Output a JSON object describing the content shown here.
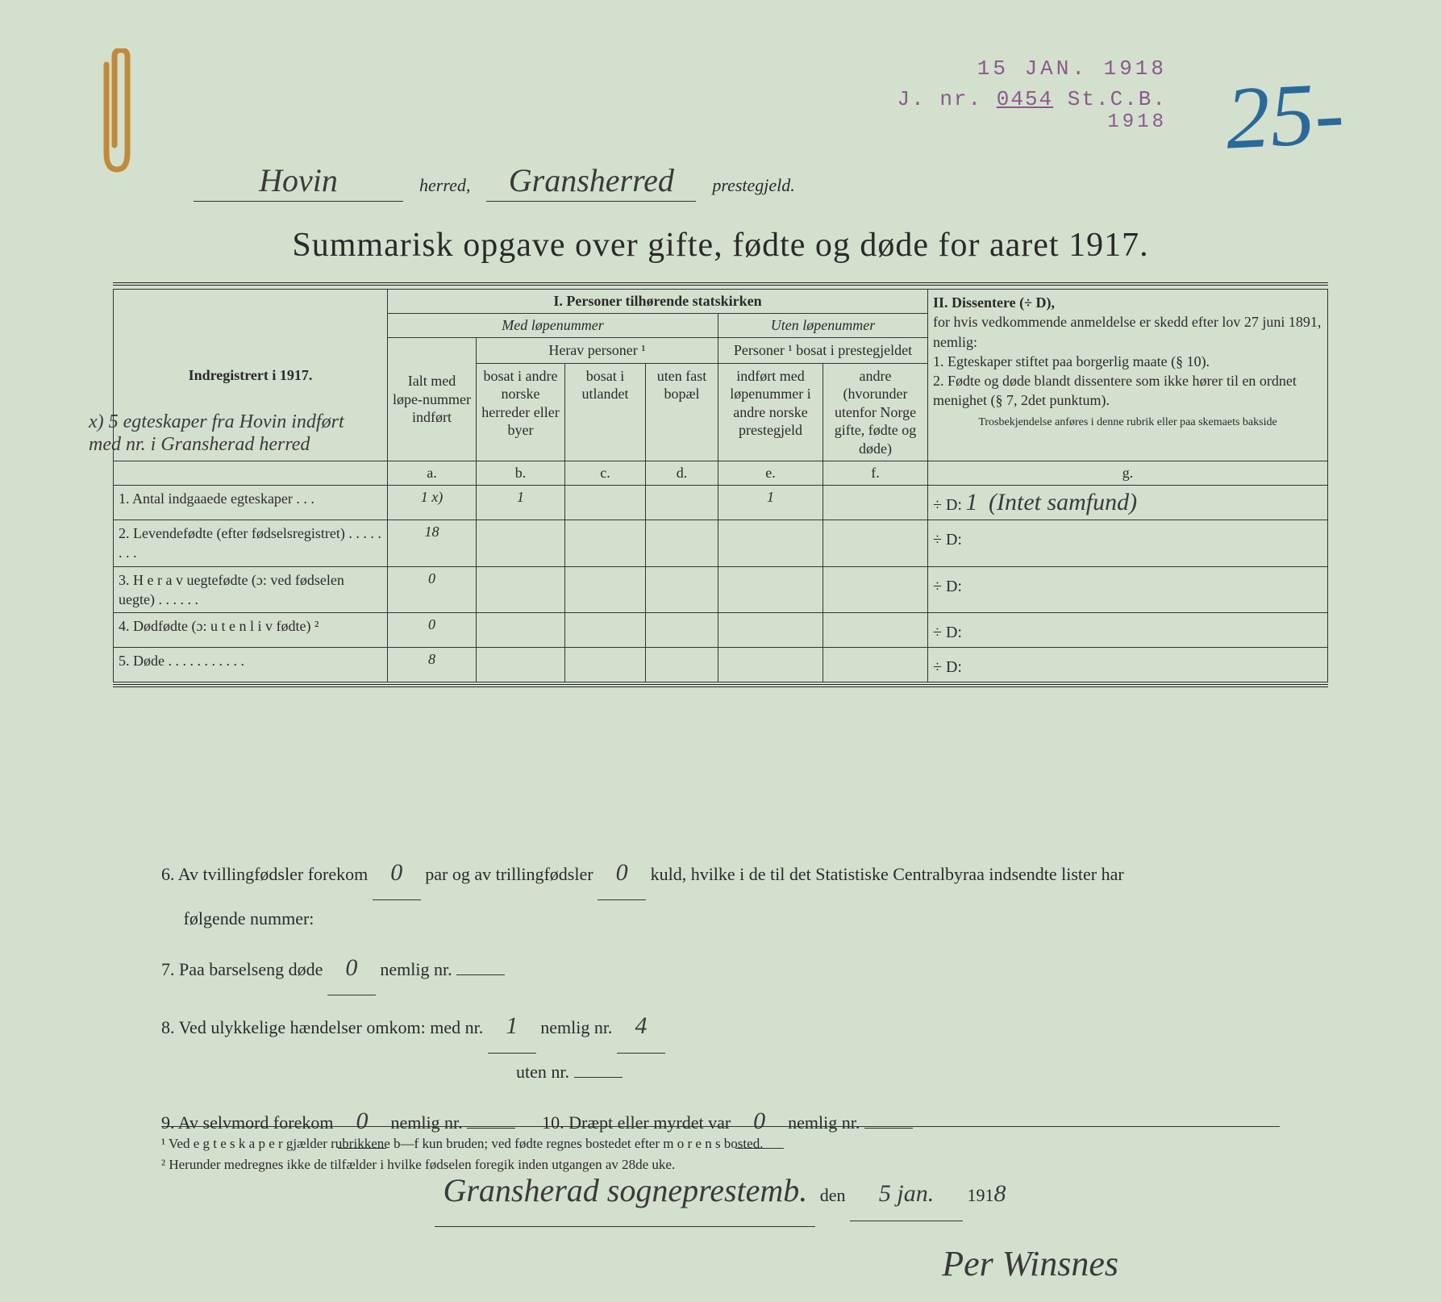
{
  "stamps": {
    "date": "15 JAN. 1918",
    "jnr_prefix": "J. nr.",
    "jnr_number": "0454",
    "jnr_suffix": "St.C.B.",
    "year": "1918"
  },
  "big_number": "25-",
  "header": {
    "herred_value": "Hovin",
    "herred_label": "herred,",
    "prestegjeld_value": "Gransherred",
    "prestegjeld_label": "prestegjeld."
  },
  "title": "Summarisk opgave over gifte, fødte og døde for aaret 1917.",
  "margin_note": "x) 5 egteskaper fra Hovin indført med nr. i Gransherad herred",
  "table": {
    "section1": "I.  Personer tilhørende statskirken",
    "section2_title": "II.  Dissentere (÷ D),",
    "section2_body": "for hvis vedkommende anmeldelse er skedd efter lov 27 juni 1891, nemlig:\n1. Egteskaper stiftet paa borgerlig maate (§ 10).\n2. Fødte og døde blandt dissentere som ikke hører til en ordnet menighet (§ 7, 2det punktum).",
    "section2_small": "Trosbekjendelse anføres i denne rubrik eller paa skemaets bakside",
    "med": "Med løpenummer",
    "uten": "Uten løpenummer",
    "indreg": "Indregistrert i 1917.",
    "ialt": "Ialt med løpe-nummer indført",
    "herav": "Herav personer ¹",
    "pers_bosat": "Personer ¹ bosat i prestegjeldet",
    "col_b": "bosat i andre norske herreder eller byer",
    "col_c": "bosat i utlandet",
    "col_d": "uten fast bopæl",
    "col_e": "indført med løpenummer i andre norske prestegjeld",
    "col_f": "andre (hvorunder utenfor Norge gifte, fødte og døde)",
    "letters": {
      "a": "a.",
      "b": "b.",
      "c": "c.",
      "d": "d.",
      "e": "e.",
      "f": "f.",
      "g": "g."
    },
    "rows": [
      {
        "n": "1.",
        "label": "Antal indgaaede egteskaper  .  .  .",
        "a": "1 x)",
        "b": "1",
        "c": "",
        "d": "",
        "e": "1",
        "f": "",
        "g_val": "1",
        "g_note": "(Intet samfund)"
      },
      {
        "n": "2.",
        "label": "Levendefødte  (efter  fødselsregistret)  .  .  .  .  .  .  .  .",
        "a": "18",
        "b": "",
        "c": "",
        "d": "",
        "e": "",
        "f": "",
        "g_val": "",
        "g_note": ""
      },
      {
        "n": "3.",
        "label": "H e r a v  uegtefødte   (ɔ:  ved fødselen uegte)  .  .  .  .  .  .",
        "a": "0",
        "b": "",
        "c": "",
        "d": "",
        "e": "",
        "f": "",
        "g_val": "",
        "g_note": ""
      },
      {
        "n": "4.",
        "label": "Dødfødte (ɔ:  u t e n  l i v  fødte) ²",
        "a": "0",
        "b": "",
        "c": "",
        "d": "",
        "e": "",
        "f": "",
        "g_val": "",
        "g_note": ""
      },
      {
        "n": "5.",
        "label": "Døde  .  .  .  .  .  .  .  .  .  .  .",
        "a": "8",
        "b": "",
        "c": "",
        "d": "",
        "e": "",
        "f": "",
        "g_val": "",
        "g_note": ""
      }
    ],
    "plusd": "÷ D:"
  },
  "below": {
    "line6_a": "6.   Av tvillingfødsler forekom",
    "line6_tv": "0",
    "line6_b": "par  og  av  trillingfødsler",
    "line6_tr": "0",
    "line6_c": "kuld,  hvilke  i  de  til  det  Statistiske  Centralbyraa  indsendte  lister  har",
    "line6_d": "følgende nummer:",
    "line7_a": "7.   Paa barselseng døde",
    "line7_v": "0",
    "line7_b": "nemlig nr.",
    "line8_a": "8.   Ved ulykkelige hændelser omkom:   med nr.",
    "line8_v1": "1",
    "line8_b": "nemlig nr.",
    "line8_v2": "4",
    "line8_c": "uten nr.",
    "line9_a": "9.   Av selvmord forekom",
    "line9_v": "0",
    "line9_b": "nemlig nr.",
    "line10_a": "10.   Dræpt eller myrdet var",
    "line10_v": "0",
    "line10_b": "nemlig nr.",
    "place": "Gransherad sogneprestemb.",
    "den": "den",
    "date_day": "5 jan.",
    "date_year_prefix": "191",
    "date_year_last": "8",
    "signature": "Per Winsnes"
  },
  "footnotes": {
    "f1": "¹ Ved  e g t e s k a p e r  gjælder rubrikkene b—f kun bruden; ved fødte regnes bostedet efter  m o r e n s  bosted.",
    "f2": "² Herunder medregnes ikke de tilfælder i hvilke fødselen foregik inden utgangen av 28de uke."
  },
  "colors": {
    "paper": "#d4e0ce",
    "ink": "#2a2a2a",
    "stamp": "#8a5a8a",
    "blue": "#2a6a9a",
    "clip": "#c08a3a"
  }
}
